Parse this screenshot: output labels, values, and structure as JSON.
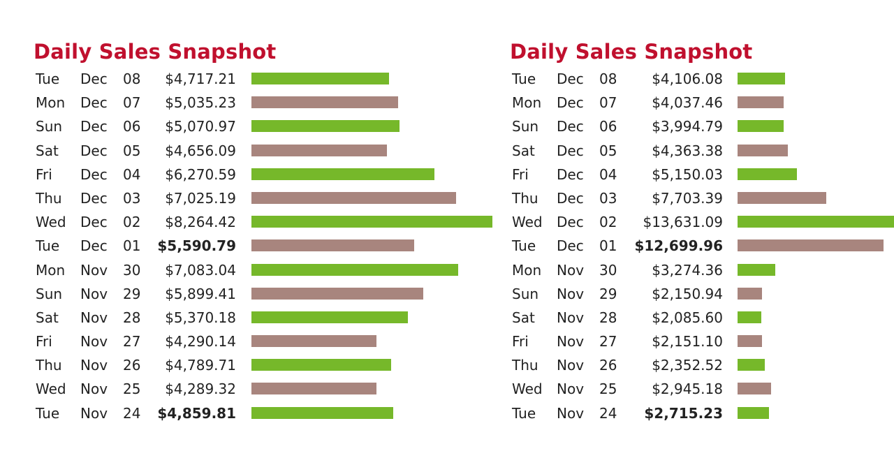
{
  "colors": {
    "title": "#c0102e",
    "green": "#76b82a",
    "brown": "#a8857e"
  },
  "chart_data": [
    {
      "type": "bar",
      "title": "Daily Sales Snapshot",
      "rows": [
        {
          "day": "Tue",
          "month": "Dec",
          "date": "08",
          "amount": "$4,717.21",
          "value": 4717.21,
          "color": "green",
          "bold": false
        },
        {
          "day": "Mon",
          "month": "Dec",
          "date": "07",
          "amount": "$5,035.23",
          "value": 5035.23,
          "color": "brown",
          "bold": false
        },
        {
          "day": "Sun",
          "month": "Dec",
          "date": "06",
          "amount": "$5,070.97",
          "value": 5070.97,
          "color": "green",
          "bold": false
        },
        {
          "day": "Sat",
          "month": "Dec",
          "date": "05",
          "amount": "$4,656.09",
          "value": 4656.09,
          "color": "brown",
          "bold": false
        },
        {
          "day": "Fri",
          "month": "Dec",
          "date": "04",
          "amount": "$6,270.59",
          "value": 6270.59,
          "color": "green",
          "bold": false
        },
        {
          "day": "Thu",
          "month": "Dec",
          "date": "03",
          "amount": "$7,025.19",
          "value": 7025.19,
          "color": "brown",
          "bold": false
        },
        {
          "day": "Wed",
          "month": "Dec",
          "date": "02",
          "amount": "$8,264.42",
          "value": 8264.42,
          "color": "green",
          "bold": false
        },
        {
          "day": "Tue",
          "month": "Dec",
          "date": "01",
          "amount": "$5,590.79",
          "value": 5590.79,
          "color": "brown",
          "bold": true
        },
        {
          "day": "Mon",
          "month": "Nov",
          "date": "30",
          "amount": "$7,083.04",
          "value": 7083.04,
          "color": "green",
          "bold": false
        },
        {
          "day": "Sun",
          "month": "Nov",
          "date": "29",
          "amount": "$5,899.41",
          "value": 5899.41,
          "color": "brown",
          "bold": false
        },
        {
          "day": "Sat",
          "month": "Nov",
          "date": "28",
          "amount": "$5,370.18",
          "value": 5370.18,
          "color": "green",
          "bold": false
        },
        {
          "day": "Fri",
          "month": "Nov",
          "date": "27",
          "amount": "$4,290.14",
          "value": 4290.14,
          "color": "brown",
          "bold": false
        },
        {
          "day": "Thu",
          "month": "Nov",
          "date": "26",
          "amount": "$4,789.71",
          "value": 4789.71,
          "color": "green",
          "bold": false
        },
        {
          "day": "Wed",
          "month": "Nov",
          "date": "25",
          "amount": "$4,289.32",
          "value": 4289.32,
          "color": "brown",
          "bold": false
        },
        {
          "day": "Tue",
          "month": "Nov",
          "date": "24",
          "amount": "$4,859.81",
          "value": 4859.81,
          "color": "green",
          "bold": true
        }
      ]
    },
    {
      "type": "bar",
      "title": "Daily Sales Snapshot",
      "rows": [
        {
          "day": "Tue",
          "month": "Dec",
          "date": "08",
          "amount": "$4,106.08",
          "value": 4106.08,
          "color": "green",
          "bold": false
        },
        {
          "day": "Mon",
          "month": "Dec",
          "date": "07",
          "amount": "$4,037.46",
          "value": 4037.46,
          "color": "brown",
          "bold": false
        },
        {
          "day": "Sun",
          "month": "Dec",
          "date": "06",
          "amount": "$3,994.79",
          "value": 3994.79,
          "color": "green",
          "bold": false
        },
        {
          "day": "Sat",
          "month": "Dec",
          "date": "05",
          "amount": "$4,363.38",
          "value": 4363.38,
          "color": "brown",
          "bold": false
        },
        {
          "day": "Fri",
          "month": "Dec",
          "date": "04",
          "amount": "$5,150.03",
          "value": 5150.03,
          "color": "green",
          "bold": false
        },
        {
          "day": "Thu",
          "month": "Dec",
          "date": "03",
          "amount": "$7,703.39",
          "value": 7703.39,
          "color": "brown",
          "bold": false
        },
        {
          "day": "Wed",
          "month": "Dec",
          "date": "02",
          "amount": "$13,631.09",
          "value": 13631.09,
          "color": "green",
          "bold": false
        },
        {
          "day": "Tue",
          "month": "Dec",
          "date": "01",
          "amount": "$12,699.96",
          "value": 12699.96,
          "color": "brown",
          "bold": true
        },
        {
          "day": "Mon",
          "month": "Nov",
          "date": "30",
          "amount": "$3,274.36",
          "value": 3274.36,
          "color": "green",
          "bold": false
        },
        {
          "day": "Sun",
          "month": "Nov",
          "date": "29",
          "amount": "$2,150.94",
          "value": 2150.94,
          "color": "brown",
          "bold": false
        },
        {
          "day": "Sat",
          "month": "Nov",
          "date": "28",
          "amount": "$2,085.60",
          "value": 2085.6,
          "color": "green",
          "bold": false
        },
        {
          "day": "Fri",
          "month": "Nov",
          "date": "27",
          "amount": "$2,151.10",
          "value": 2151.1,
          "color": "brown",
          "bold": false
        },
        {
          "day": "Thu",
          "month": "Nov",
          "date": "26",
          "amount": "$2,352.52",
          "value": 2352.52,
          "color": "green",
          "bold": false
        },
        {
          "day": "Wed",
          "month": "Nov",
          "date": "25",
          "amount": "$2,945.18",
          "value": 2945.18,
          "color": "brown",
          "bold": false
        },
        {
          "day": "Tue",
          "month": "Nov",
          "date": "24",
          "amount": "$2,715.23",
          "value": 2715.23,
          "color": "green",
          "bold": true
        }
      ]
    }
  ]
}
